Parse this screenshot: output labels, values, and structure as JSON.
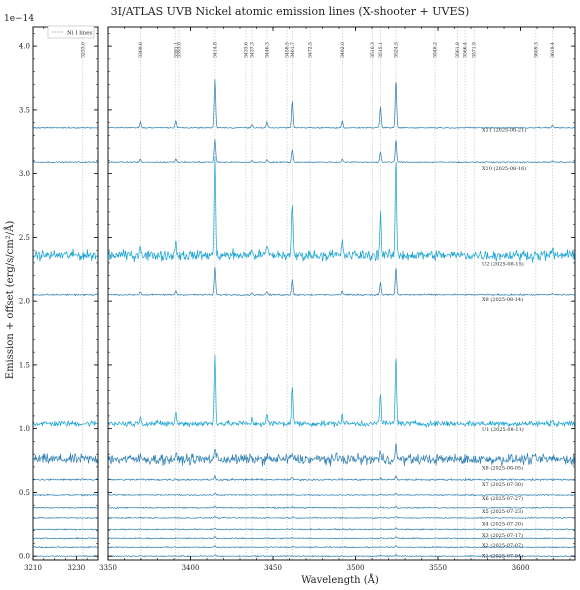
{
  "chart_data": {
    "type": "line",
    "title": "3I/ATLAS UVB Nickel atomic emission lines (X-shooter + UVES)",
    "xlabel": "Wavelength (Å)",
    "ylabel": "Emission + offset (erg/s/cm²/Å)",
    "y_scale_label": "1e−14",
    "ylim": [
      -0.03,
      4.15
    ],
    "y_ticks": [
      0.0,
      0.5,
      1.0,
      1.5,
      2.0,
      2.5,
      3.0,
      3.5,
      4.0
    ],
    "panels": [
      {
        "xlim": [
          3210,
          3240
        ],
        "x_ticks": [
          3210,
          3230
        ]
      },
      {
        "xlim": [
          3350,
          3633
        ],
        "x_ticks": [
          3350,
          3400,
          3450,
          3500,
          3550,
          3600
        ]
      }
    ],
    "legend": {
      "label": "Ni I lines",
      "placement": "top-left"
    },
    "line_markers": [
      3233.0,
      3369.6,
      3391.1,
      3393.0,
      3414.8,
      3433.6,
      3437.3,
      3446.3,
      3458.5,
      3461.7,
      3472.5,
      3492.0,
      3510.3,
      3515.1,
      3524.5,
      3548.2,
      3561.8,
      3566.4,
      3571.9,
      3609.3,
      3619.4
    ],
    "line_marker_labels": [
      "3233.0",
      "3369.6",
      "3391.1",
      "3393.0",
      "3414.8",
      "3433.6",
      "3437.3",
      "3446.3",
      "3458.5",
      "3461.7",
      "3472.5",
      "3492.0",
      "3510.3",
      "3515.1",
      "3524.5",
      "3548.2",
      "3561.8",
      "3566.4",
      "3571.9",
      "3609.3",
      "3619.4"
    ],
    "series": [
      {
        "name": "X1 (2025-07-04)",
        "offset": 0.0,
        "noise": 0.004,
        "peak": 0.012,
        "color": "#2e7fb3"
      },
      {
        "name": "X2 (2025-07-07)",
        "offset": 0.07,
        "noise": 0.004,
        "peak": 0.012,
        "color": "#2e7fb3"
      },
      {
        "name": "X3 (2025-07-17)",
        "offset": 0.14,
        "noise": 0.004,
        "peak": 0.012,
        "color": "#2e7fb3"
      },
      {
        "name": "X4 (2025-07-20)",
        "offset": 0.21,
        "noise": 0.004,
        "peak": 0.012,
        "color": "#2e7fb3"
      },
      {
        "name": "X5 (2025-07-23)",
        "offset": 0.3,
        "noise": 0.004,
        "peak": 0.012,
        "color": "#2e7fb3"
      },
      {
        "name": "X6 (2025-07-27)",
        "offset": 0.38,
        "noise": 0.004,
        "peak": 0.012,
        "color": "#2e7fb3"
      },
      {
        "name": "X7 (2025-07-30)",
        "offset": 0.48,
        "noise": 0.004,
        "peak": 0.015,
        "color": "#2e7fb3"
      },
      {
        "name": "X8 (2025-08-05)",
        "offset": 0.6,
        "noise": 0.006,
        "peak": 0.03,
        "color": "#2e7fb3"
      },
      {
        "name": "X8 (2025-08-05)",
        "offset": 0.76,
        "noise": 0.035,
        "peak": 0.1,
        "color": "#2e7fb3"
      },
      {
        "name": "U1 (2025-08-11)",
        "offset": 1.04,
        "noise": 0.02,
        "peak": 0.55,
        "color": "#1aa3d1"
      },
      {
        "name": "X9 (2025-08-14)",
        "offset": 2.05,
        "noise": 0.005,
        "peak": 0.22,
        "color": "#2e7fb3"
      },
      {
        "name": "U2 (2025-08-15)",
        "offset": 2.36,
        "noise": 0.035,
        "peak": 0.75,
        "color": "#1aa3d1"
      },
      {
        "name": "X10 (2025-08-16)",
        "offset": 3.09,
        "noise": 0.004,
        "peak": 0.18,
        "color": "#2e7fb3"
      },
      {
        "name": "X11 (2025-08-21)",
        "offset": 3.36,
        "noise": 0.004,
        "peak": 0.38,
        "color": "#2e7fb3"
      }
    ],
    "series_labels": [
      {
        "text": "X11 (2025-08-21)",
        "y": 3.33
      },
      {
        "text": "X10 (2025-08-16)",
        "y": 3.03
      },
      {
        "text": "U2 (2025-08-15)",
        "y": 2.28
      },
      {
        "text": "X9 (2025-08-14)",
        "y": 2.0
      },
      {
        "text": "U1 (2025-08-11)",
        "y": 0.98
      },
      {
        "text": "X8 (2025-08-05)",
        "y": 0.68
      },
      {
        "text": "X7 (2025-07-30)",
        "y": 0.55
      },
      {
        "text": "X6 (2025-07-27)",
        "y": 0.44
      },
      {
        "text": "X5 (2025-07-23)",
        "y": 0.34
      },
      {
        "text": "X4 (2025-07-20)",
        "y": 0.24
      },
      {
        "text": "X3 (2025-07-17)",
        "y": 0.15
      },
      {
        "text": "X2 (2025-07-07)",
        "y": 0.07
      },
      {
        "text": "X1 (2025-07-04)",
        "y": -0.01
      }
    ],
    "strong_lines": [
      {
        "x": 3414.8,
        "rel": 1.0
      },
      {
        "x": 3461.7,
        "rel": 0.55
      },
      {
        "x": 3515.1,
        "rel": 0.45
      },
      {
        "x": 3524.5,
        "rel": 1.0
      },
      {
        "x": 3369.6,
        "rel": 0.12
      },
      {
        "x": 3391.1,
        "rel": 0.15
      },
      {
        "x": 3446.3,
        "rel": 0.12
      },
      {
        "x": 3492.0,
        "rel": 0.14
      },
      {
        "x": 3437.3,
        "rel": 0.06
      },
      {
        "x": 3619.4,
        "rel": 0.05
      }
    ]
  }
}
